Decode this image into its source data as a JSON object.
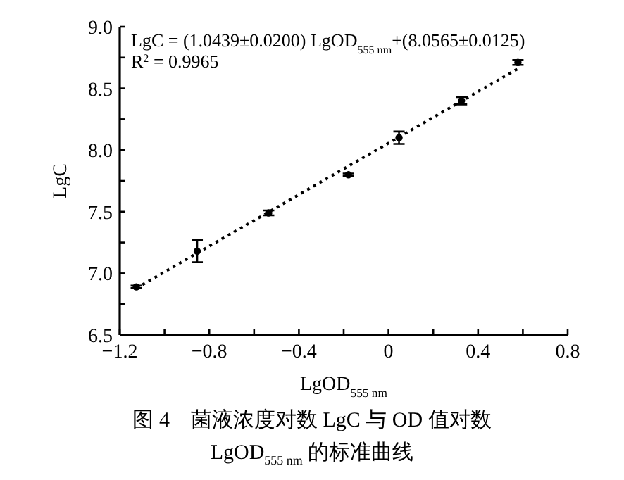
{
  "chart_data": {
    "type": "scatter",
    "xlabel": "LgOD$_{555 nm}$",
    "ylabel": "LgC",
    "annotations": [
      "LgC = (1.0439±0.0200) LgOD$_{555 nm}$+(8.0565±0.0125)",
      "R$^{2}$ = 0.9965",
      "图 4　菌液浓度对数 LgC 与 OD 值对数 LgOD$_{555 nm}$ 的标准曲线"
    ],
    "xlim": [
      -1.2,
      0.8
    ],
    "ylim": [
      6.5,
      9.0
    ],
    "xticks": [
      {
        "value": -1.2,
        "label": "−1.2"
      },
      {
        "value": -1.0,
        "label": null
      },
      {
        "value": -0.8,
        "label": "−0.8"
      },
      {
        "value": -0.6,
        "label": null
      },
      {
        "value": -0.4,
        "label": "−0.4"
      },
      {
        "value": -0.2,
        "label": null
      },
      0,
      {
        "value": 0.2,
        "label": null
      },
      0.4,
      {
        "value": 0.6,
        "label": null
      },
      0.8
    ],
    "yticks": [
      {
        "value": 6.5,
        "label": "6.5"
      },
      {
        "value": 6.75,
        "label": null
      },
      {
        "value": 7.0,
        "label": "7.0"
      },
      {
        "value": 7.25,
        "label": null
      },
      {
        "value": 7.5,
        "label": "7.5"
      },
      {
        "value": 7.75,
        "label": null
      },
      {
        "value": 8.0,
        "label": "8.0"
      },
      {
        "value": 8.25,
        "label": null
      },
      {
        "value": 8.5,
        "label": "8.5"
      },
      {
        "value": 8.75,
        "label": null
      },
      {
        "value": 9.0,
        "label": "9.0"
      }
    ],
    "series": [
      {
        "type": "line",
        "color": "#000000",
        "line_style": "dotted",
        "x": [
          -1.126,
          0.578
        ],
        "values": [
          6.88,
          8.66
        ]
      },
      {
        "color": "#000000",
        "marker": "circle",
        "x": [
          -1.126,
          -0.854,
          -0.535,
          -0.179,
          0.047,
          0.326,
          0.578
        ],
        "values": [
          6.89,
          7.18,
          7.49,
          7.8,
          8.1,
          8.4,
          8.71
        ],
        "errors": [
          0.01,
          0.09,
          0.02,
          0.01,
          0.05,
          0.03,
          0.02
        ]
      }
    ]
  }
}
